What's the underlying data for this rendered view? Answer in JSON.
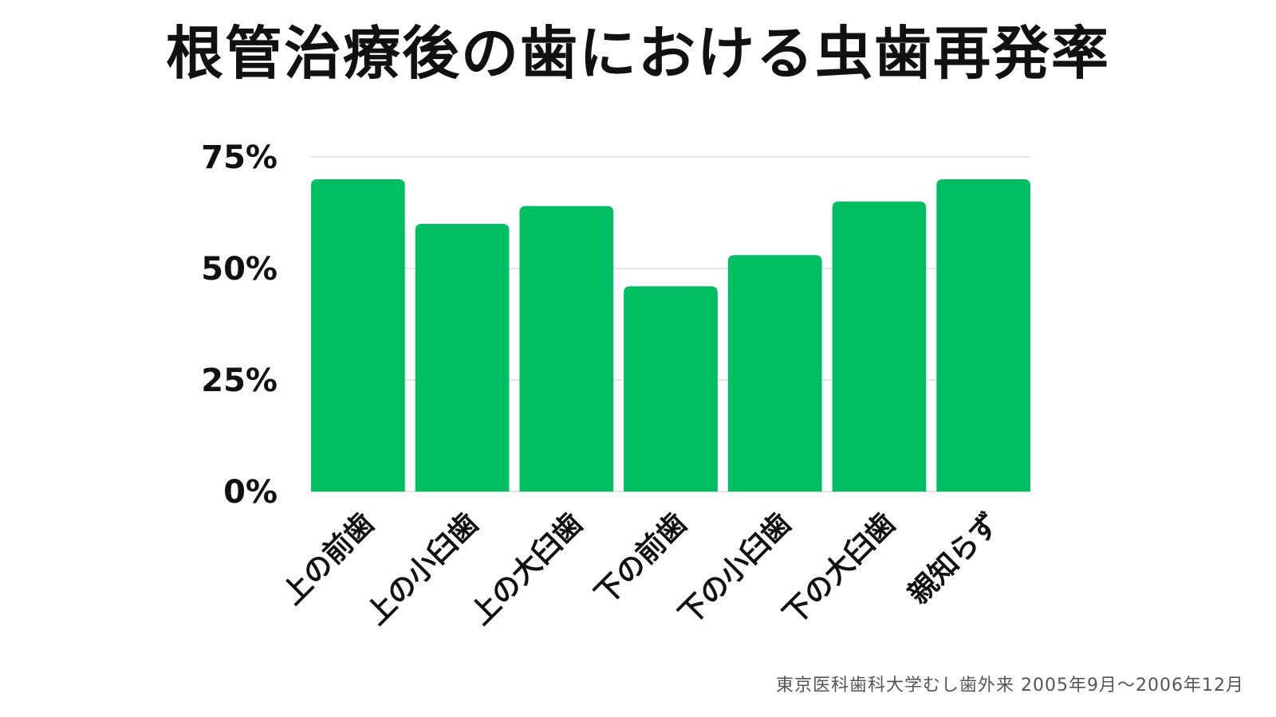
{
  "chart_data": {
    "type": "bar",
    "title": "根管治療後の歯における虫歯再発率",
    "categories": [
      "上の前歯",
      "上の小臼歯",
      "上の大臼歯",
      "下の前歯",
      "下の小臼歯",
      "下の大臼歯",
      "親知らず"
    ],
    "values": [
      70,
      60,
      64,
      46,
      53,
      65,
      70
    ],
    "ylim": [
      0,
      75
    ],
    "yticks": [
      0,
      25,
      50,
      75
    ],
    "ytick_labels": [
      "0%",
      "25%",
      "50%",
      "75%"
    ],
    "xlabel": "",
    "ylabel": "",
    "grid": true,
    "bar_color": "#00BF63",
    "grid_color": "#dddddd"
  },
  "footer": {
    "source": "東京医科歯科大学むし歯外来 2005年9月〜2006年12月"
  }
}
